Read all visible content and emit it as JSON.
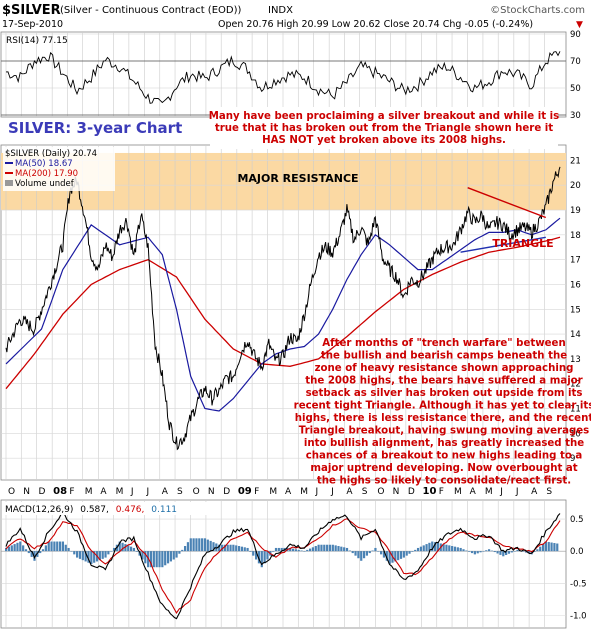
{
  "header": {
    "title": "$SILVER",
    "subtitle": "(Silver - Continuous Contract (EOD))",
    "exchange": "INDX",
    "watermark": "©StockCharts.com",
    "date": "17-Sep-2010",
    "quote": "Open 20.76  High 20.99  Low 20.62  Close 20.74  Chg -0.05 (-0.24%)",
    "quote_arrow": "▼"
  },
  "legends": {
    "rsi": "RSI(14) 77.15",
    "price": "$SILVER (Daily) 20.74",
    "ma50": "MA(50) 18.67",
    "ma200": "MA(200) 17.90",
    "volume": "Volume undef",
    "macd_prefix": "MACD(12,26,9)",
    "macd_val": "0.587,",
    "macd_signal": "0.476,",
    "macd_hist": "0.111"
  },
  "annotations": {
    "chart_title": "SILVER: 3-year Chart",
    "top_note": [
      "Many have been proclaiming a silver breakout and while it is",
      "true that it has broken out from the Triangle shown here it",
      "HAS NOT yet broken above its 2008 highs."
    ],
    "resistance_label": "MAJOR RESISTANCE",
    "triangle_label": "TRIANGLE",
    "main_note": [
      "After months of \"trench warfare\" between",
      "the bullish and bearish camps beneath the",
      "zone of heavy resistance shown approaching",
      "the 2008 highs, the bears have suffered a major",
      "setback as silver has broken out upside from its",
      "recent tight Triangle. Although it has yet to clear its",
      "highs, there is less resistance there, and the recent",
      "Triangle breakout, having swung moving averages",
      "into bullish alignment, has greatly increased the",
      "chances of a breakout to new highs leading to a",
      "major uptrend developing. Now overbought at",
      "the highs so likely to consolidate/react first."
    ]
  },
  "colors": {
    "price": "#000000",
    "ma50": "#1a1aa0",
    "ma200": "#cc0000",
    "annotation": "#cc0000",
    "chart_title": "#3b3bb8",
    "resistance_band": "#fbd9a3",
    "grid": "#bbbbbb",
    "macd_hist": "#4a82b4"
  },
  "chart_data": [
    {
      "type": "line",
      "name": "RSI",
      "ylim": [
        30,
        90
      ],
      "yticks": [
        30,
        50,
        70,
        90
      ],
      "reference_levels": [
        30,
        70
      ],
      "last_value": 77.15,
      "x": [
        0,
        4,
        8,
        12,
        16,
        20,
        24,
        28,
        32,
        36,
        40,
        44,
        48,
        52,
        56,
        60,
        64,
        68,
        72,
        76,
        80,
        84,
        88,
        92,
        96,
        100,
        104,
        108,
        112,
        116,
        120,
        124,
        128,
        132,
        136,
        140,
        144,
        148,
        152,
        156
      ],
      "values": [
        62,
        58,
        70,
        74,
        61,
        48,
        58,
        71,
        66,
        55,
        43,
        36,
        52,
        60,
        57,
        64,
        71,
        64,
        50,
        56,
        60,
        58,
        49,
        44,
        54,
        66,
        61,
        55,
        48,
        52,
        62,
        66,
        58,
        50,
        55,
        63,
        60,
        52,
        70,
        77.15
      ]
    },
    {
      "type": "line",
      "name": "Price",
      "x_unit": "week",
      "x_tick_labels": [
        "O",
        "N",
        "D",
        "08",
        "F",
        "M",
        "A",
        "M",
        "J",
        "J",
        "A",
        "S",
        "O",
        "N",
        "D",
        "09",
        "F",
        "M",
        "A",
        "M",
        "J",
        "J",
        "A",
        "S",
        "O",
        "N",
        "D",
        "10",
        "F",
        "M",
        "A",
        "M",
        "J",
        "J",
        "A",
        "S"
      ],
      "x_tick_positions": [
        0,
        4.3,
        8.6,
        13,
        17.3,
        21.6,
        26,
        30.3,
        34.6,
        39,
        43.3,
        47.6,
        52,
        56.3,
        60.6,
        65,
        69.3,
        73.6,
        78,
        82.3,
        86.6,
        91,
        95.3,
        99.6,
        104,
        108.3,
        112.6,
        117,
        121.3,
        125.6,
        130,
        134.3,
        138.6,
        143,
        147.3,
        151.6
      ],
      "ylim": [
        8.2,
        21.5
      ],
      "yticks": [
        9,
        10,
        11,
        12,
        13,
        14,
        15,
        16,
        17,
        18,
        19,
        20,
        21
      ],
      "resistance_zone": [
        19.0,
        21.3
      ],
      "triangle_upper": [
        [
          130,
          19.9
        ],
        [
          152,
          18.7
        ]
      ],
      "triangle_lower": [
        [
          128,
          17.3
        ],
        [
          152,
          17.9
        ]
      ],
      "close": {
        "x": [
          0,
          4,
          8,
          12,
          16,
          18,
          20,
          22,
          24,
          26,
          28,
          30,
          32,
          34,
          36,
          38,
          40,
          42,
          44,
          46,
          48,
          50,
          52,
          54,
          56,
          58,
          60,
          62,
          64,
          66,
          68,
          70,
          72,
          74,
          76,
          78,
          80,
          82,
          84,
          86,
          88,
          90,
          92,
          94,
          96,
          98,
          100,
          102,
          104,
          106,
          108,
          110,
          112,
          114,
          116,
          118,
          120,
          122,
          124,
          126,
          128,
          130,
          132,
          134,
          136,
          138,
          140,
          142,
          144,
          146,
          148,
          150,
          152,
          154,
          156
        ],
        "values": [
          13.4,
          14.6,
          14.2,
          15.8,
          17.6,
          19.8,
          20.2,
          18.9,
          17.2,
          16.6,
          17.6,
          17.1,
          18.2,
          18.6,
          17.1,
          18.8,
          17.5,
          13.6,
          12.3,
          10.4,
          9.6,
          9.8,
          10.6,
          11.3,
          11.8,
          11.4,
          11.7,
          12.2,
          12.3,
          13.2,
          13.8,
          13.1,
          12.7,
          13.6,
          12.9,
          13.1,
          13.9,
          13.7,
          14.8,
          16.1,
          17.2,
          17.5,
          17.3,
          18.0,
          19.0,
          17.8,
          18.3,
          17.6,
          18.7,
          17.1,
          16.6,
          16.3,
          15.5,
          16.2,
          16.1,
          16.5,
          17.0,
          17.4,
          17.5,
          17.6,
          18.2,
          18.9,
          18.5,
          18.8,
          18.2,
          18.5,
          18.4,
          18.0,
          18.2,
          18.3,
          18.1,
          18.5,
          19.1,
          20.1,
          20.74
        ]
      },
      "ma50": {
        "x": [
          0,
          10,
          16,
          24,
          32,
          40,
          44,
          48,
          52,
          56,
          60,
          64,
          68,
          72,
          76,
          80,
          84,
          88,
          92,
          96,
          100,
          104,
          108,
          112,
          116,
          120,
          124,
          128,
          132,
          136,
          140,
          144,
          148,
          152,
          156
        ],
        "values": [
          12.8,
          14.2,
          16.6,
          18.4,
          17.6,
          17.9,
          17.2,
          15.0,
          12.3,
          11.0,
          10.9,
          11.4,
          12.1,
          12.8,
          13.2,
          13.4,
          13.5,
          14.0,
          15.0,
          16.2,
          17.2,
          18.0,
          17.6,
          17.1,
          16.6,
          16.6,
          17.0,
          17.4,
          17.8,
          18.1,
          18.1,
          18.2,
          18.0,
          18.2,
          18.67
        ]
      },
      "ma200": {
        "x": [
          0,
          8,
          16,
          24,
          32,
          40,
          48,
          56,
          64,
          72,
          80,
          88,
          96,
          104,
          112,
          120,
          128,
          136,
          144,
          152,
          156
        ],
        "values": [
          11.8,
          13.2,
          14.8,
          16.0,
          16.6,
          17.0,
          16.3,
          14.6,
          13.4,
          12.8,
          12.7,
          13.0,
          13.9,
          14.9,
          15.8,
          16.4,
          16.9,
          17.3,
          17.5,
          17.75,
          17.9
        ]
      }
    },
    {
      "type": "line",
      "name": "MACD(12,26,9)",
      "ylim": [
        -1.15,
        0.75
      ],
      "yticks": [
        -1.0,
        -0.5,
        0.0,
        0.5
      ],
      "macd": {
        "x": [
          0,
          4,
          8,
          12,
          16,
          20,
          24,
          28,
          32,
          36,
          40,
          44,
          48,
          52,
          56,
          60,
          64,
          68,
          72,
          76,
          80,
          84,
          88,
          92,
          96,
          100,
          104,
          108,
          112,
          116,
          120,
          124,
          128,
          132,
          136,
          140,
          144,
          148,
          152,
          156
        ],
        "values": [
          0.1,
          0.35,
          -0.1,
          0.3,
          0.6,
          0.3,
          -0.2,
          -0.3,
          0.15,
          0.2,
          -0.35,
          -0.85,
          -1.05,
          -0.55,
          -0.05,
          0.1,
          0.3,
          0.35,
          -0.2,
          -0.05,
          0.1,
          0.05,
          0.3,
          0.5,
          0.55,
          0.2,
          0.35,
          -0.2,
          -0.45,
          -0.3,
          0.05,
          0.25,
          0.35,
          0.2,
          0.25,
          0.0,
          0.05,
          -0.05,
          0.3,
          0.587
        ]
      },
      "signal": {
        "x": [
          0,
          4,
          8,
          12,
          16,
          20,
          24,
          28,
          32,
          36,
          40,
          44,
          48,
          52,
          56,
          60,
          64,
          68,
          72,
          76,
          80,
          84,
          88,
          92,
          96,
          100,
          104,
          108,
          112,
          116,
          120,
          124,
          128,
          132,
          136,
          140,
          144,
          148,
          152,
          156
        ],
        "values": [
          0.05,
          0.2,
          0.05,
          0.15,
          0.45,
          0.4,
          0.0,
          -0.2,
          0.0,
          0.15,
          -0.1,
          -0.6,
          -0.95,
          -0.75,
          -0.25,
          0.0,
          0.2,
          0.3,
          0.05,
          -0.1,
          0.05,
          0.05,
          0.2,
          0.4,
          0.5,
          0.35,
          0.3,
          0.0,
          -0.35,
          -0.35,
          -0.1,
          0.15,
          0.3,
          0.25,
          0.22,
          0.08,
          0.03,
          0.0,
          0.15,
          0.476
        ]
      }
    }
  ]
}
